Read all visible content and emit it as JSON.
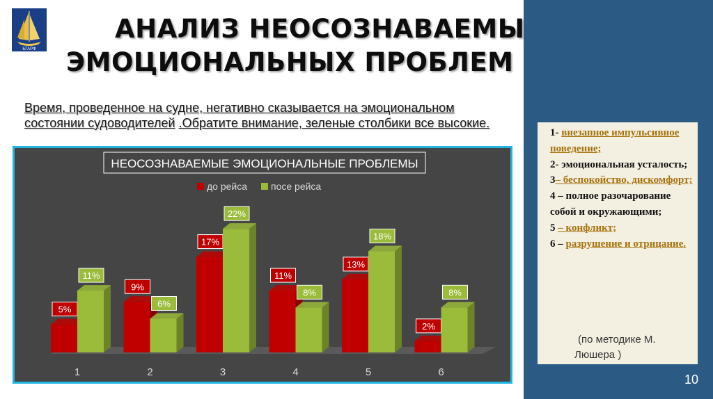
{
  "title": {
    "line1": "АНАЛИЗ НЕОСОЗНАВАЕМЫХ",
    "line2": "ЭМОЦИОНАЛЬНЫХ ПРОБЛЕМ"
  },
  "intro": {
    "text": "Время, проведенное на судне, негативно сказывается на эмоциональном состоянии судоводителей",
    "text2": ".Обратите внимание, зеленые столбики все высокие."
  },
  "logo": {
    "caption": "БГАРФ"
  },
  "chart_data": {
    "type": "bar",
    "title": "НЕОСОЗНАВАЕМЫЕ ЭМОЦИОНАЛЬНЫЕ ПРОБЛЕМЫ",
    "categories": [
      "1",
      "2",
      "3",
      "4",
      "5",
      "6"
    ],
    "series": [
      {
        "name": "до рейса",
        "values": [
          5,
          9,
          17,
          11,
          13,
          2
        ],
        "labels": [
          "5%",
          "9%",
          "17%",
          "11%",
          "13%",
          "2%"
        ],
        "color": "#c00000"
      },
      {
        "name": "посе рейса",
        "values": [
          11,
          6,
          22,
          8,
          18,
          8
        ],
        "labels": [
          "11%",
          "6%",
          "22%",
          "8%",
          "18%",
          "8%"
        ],
        "color": "#9bbb3a"
      }
    ],
    "xlabel": "",
    "ylabel": "",
    "ylim": [
      0,
      24
    ],
    "legend": "top-center",
    "grid": false
  },
  "legend_items": [
    "до рейса",
    "посе рейса"
  ],
  "notes": [
    {
      "prefix": "1- ",
      "text": "внезапное импульсивное поведение;"
    },
    {
      "prefix": "2- ",
      "text": "эмоциональная усталость;"
    },
    {
      "prefix": "3",
      "text": "– беспокойство, дискомфорт;"
    },
    {
      "prefix": "4 – ",
      "text": "полное разочарование собой и окружающими;"
    },
    {
      "prefix": "5 ",
      "text": "–  конфликт;"
    },
    {
      "prefix": "6 – ",
      "text": "разрушение и отрицание."
    }
  ],
  "method": {
    "line1": "(по методике М.",
    "line2": "Люшера )"
  },
  "page_number": "10",
  "colors": {
    "panel": "#2b5b84",
    "chart_bg": "#454545",
    "chart_border": "#21b6e2",
    "note_bg": "#f3efe1"
  }
}
